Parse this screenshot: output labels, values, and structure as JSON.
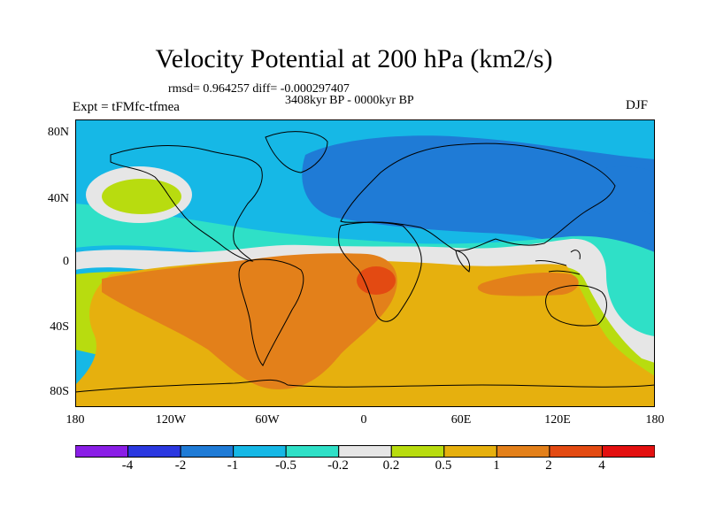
{
  "header": {
    "title": "Velocity Potential at 200 hPa (km2/s)",
    "stats": "rmsd= 0.964257 diff= -0.000297407",
    "period": "3408kyr BP - 0000kyr BP",
    "experiment": "Expt = tFMfc-tfmea",
    "season": "DJF"
  },
  "axes": {
    "lat_labels": [
      "80N",
      "40N",
      "0",
      "40S",
      "80S"
    ],
    "lon_labels": [
      "180",
      "120W",
      "60W",
      "0",
      "60E",
      "120E",
      "180"
    ]
  },
  "colorbar": {
    "labels": [
      "-4",
      "-2",
      "-1",
      "-0.5",
      "-0.2",
      "0.2",
      "0.5",
      "1",
      "2",
      "4"
    ],
    "colors": [
      "#8a1ee6",
      "#2b38e0",
      "#1f7bd6",
      "#16b8e6",
      "#2fe0c7",
      "#e6e6e6",
      "#b8dc0f",
      "#e6b00e",
      "#e3801a",
      "#e34a12",
      "#e31010"
    ]
  }
}
